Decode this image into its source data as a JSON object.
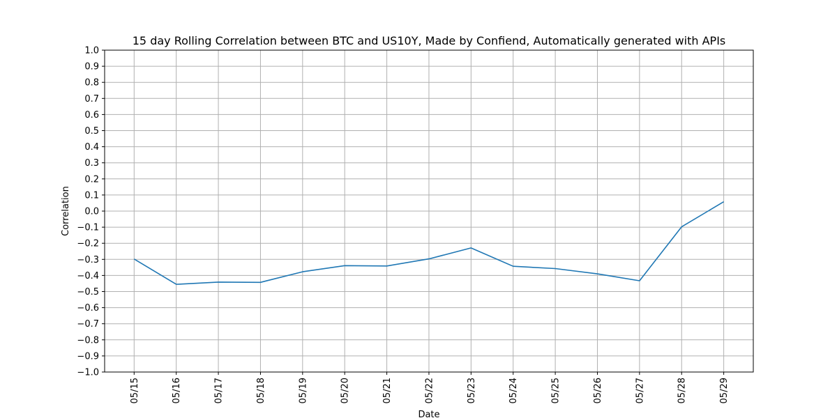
{
  "chart_data": {
    "type": "line",
    "title": "15 day Rolling Correlation between BTC and US10Y, Made by Confiend, Automatically generated with APIs",
    "xlabel": "Date",
    "ylabel": "Correlation",
    "ylim": [
      -1.0,
      1.0
    ],
    "y_ticks": [
      "−1.0",
      "−0.9",
      "−0.8",
      "−0.7",
      "−0.6",
      "−0.5",
      "−0.4",
      "−0.3",
      "−0.2",
      "−0.1",
      "0.0",
      "0.1",
      "0.2",
      "0.3",
      "0.4",
      "0.5",
      "0.6",
      "0.7",
      "0.8",
      "0.9",
      "1.0"
    ],
    "categories": [
      "05/15",
      "05/16",
      "05/17",
      "05/18",
      "05/19",
      "05/20",
      "05/21",
      "05/22",
      "05/23",
      "05/24",
      "05/25",
      "05/26",
      "05/27",
      "05/28",
      "05/29"
    ],
    "grid": true,
    "series": [
      {
        "color": "#1f77b4",
        "values": [
          -0.298,
          -0.455,
          -0.441,
          -0.443,
          -0.377,
          -0.339,
          -0.341,
          -0.297,
          -0.229,
          -0.343,
          -0.357,
          -0.39,
          -0.433,
          -0.098,
          0.058
        ]
      }
    ]
  }
}
